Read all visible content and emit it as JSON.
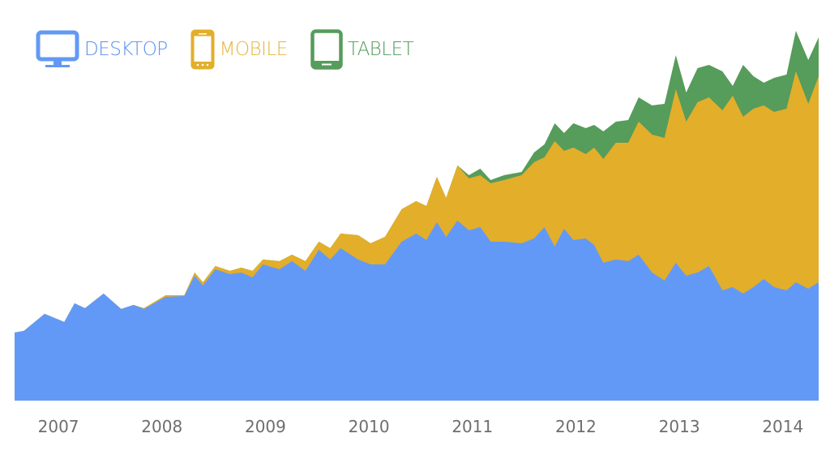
{
  "colors": {
    "desktop": "#6399f6",
    "mobile": "#e3ae2a",
    "tablet": "#569c5b",
    "desktop_text": "#5b8ff0",
    "mobile_text": "#e4b53a",
    "tablet_text": "#4f9a57",
    "axis_text": "#6e6e6e"
  },
  "legend": [
    {
      "key": "desktop",
      "label": "DESKTOP",
      "icon": "desktop-monitor-icon"
    },
    {
      "key": "mobile",
      "label": "MOBILE",
      "icon": "mobile-phone-icon"
    },
    {
      "key": "tablet",
      "label": "TABLET",
      "icon": "tablet-icon"
    }
  ],
  "chart_data": {
    "type": "area",
    "stacked": true,
    "title": "",
    "xlabel": "",
    "ylabel": "",
    "grid": false,
    "legend_position": "top-left",
    "x_ticks": [
      "2007",
      "2008",
      "2009",
      "2010",
      "2011",
      "2012",
      "2013",
      "2014"
    ],
    "x_range": [
      2006.78,
      2014.55
    ],
    "y_range": [
      0,
      470
    ],
    "note": "Values are relative (no y-axis shown); each value is the cumulative stacked height in px-equivalent units above baseline.",
    "x": [
      2006.78,
      2006.87,
      2007.07,
      2007.26,
      2007.36,
      2007.46,
      2007.64,
      2007.81,
      2007.93,
      2008.03,
      2008.24,
      2008.42,
      2008.52,
      2008.6,
      2008.72,
      2008.86,
      2008.97,
      2009.08,
      2009.18,
      2009.34,
      2009.46,
      2009.59,
      2009.72,
      2009.83,
      2009.93,
      2010.1,
      2010.22,
      2010.36,
      2010.52,
      2010.66,
      2010.76,
      2010.86,
      2010.95,
      2011.06,
      2011.17,
      2011.28,
      2011.38,
      2011.51,
      2011.68,
      2011.8,
      2011.9,
      2012.0,
      2012.09,
      2012.18,
      2012.3,
      2012.38,
      2012.47,
      2012.59,
      2012.71,
      2012.81,
      2012.94,
      2013.06,
      2013.17,
      2013.27,
      2013.38,
      2013.49,
      2013.62,
      2013.72,
      2013.82,
      2013.92,
      2014.02,
      2014.12,
      2014.24,
      2014.33,
      2014.45,
      2014.55
    ],
    "series": [
      {
        "name": "DESKTOP",
        "values": [
          84,
          86,
          107,
          97,
          120,
          114,
          132,
          113,
          118,
          113,
          128,
          129,
          154,
          142,
          162,
          156,
          158,
          152,
          168,
          162,
          172,
          160,
          186,
          174,
          188,
          174,
          168,
          168,
          196,
          206,
          198,
          220,
          202,
          222,
          210,
          214,
          196,
          196,
          194,
          200,
          214,
          190,
          212,
          198,
          200,
          192,
          170,
          174,
          172,
          180,
          158,
          148,
          170,
          154,
          158,
          166,
          136,
          140,
          132,
          140,
          150,
          140,
          136,
          146,
          138,
          146
        ]
      },
      {
        "name": "MOBILE",
        "values": [
          84,
          86,
          107,
          97,
          120,
          114,
          132,
          113,
          118,
          114,
          130,
          130,
          158,
          146,
          166,
          160,
          164,
          160,
          174,
          172,
          180,
          172,
          196,
          188,
          206,
          204,
          194,
          202,
          236,
          246,
          240,
          276,
          250,
          290,
          274,
          278,
          268,
          272,
          278,
          294,
          300,
          320,
          308,
          312,
          304,
          312,
          298,
          318,
          318,
          344,
          328,
          324,
          384,
          344,
          368,
          374,
          358,
          376,
          350,
          360,
          364,
          356,
          360,
          406,
          366,
          400
        ]
      },
      {
        "name": "TABLET",
        "values": [
          84,
          86,
          107,
          97,
          120,
          114,
          132,
          113,
          118,
          114,
          130,
          130,
          158,
          146,
          166,
          160,
          164,
          160,
          174,
          172,
          180,
          172,
          196,
          188,
          206,
          204,
          194,
          202,
          236,
          246,
          240,
          276,
          250,
          290,
          278,
          286,
          272,
          278,
          282,
          306,
          316,
          342,
          330,
          342,
          336,
          340,
          332,
          344,
          346,
          374,
          364,
          366,
          426,
          380,
          410,
          414,
          406,
          388,
          414,
          400,
          392,
          398,
          402,
          456,
          420,
          448
        ]
      }
    ]
  }
}
